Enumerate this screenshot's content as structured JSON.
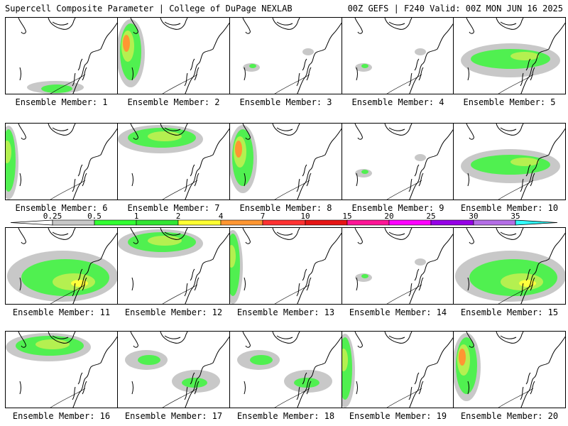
{
  "header": {
    "left": "Supercell Composite Parameter | College of DuPage NEXLAB",
    "right": "00Z GEFS | F240 Valid: 00Z MON JUN 16 2025"
  },
  "panels": [
    {
      "label": "Ensemble Member: 1",
      "pattern": "sparse-south"
    },
    {
      "label": "Ensemble Member: 2",
      "pattern": "west-strong"
    },
    {
      "label": "Ensemble Member: 3",
      "pattern": "sparse"
    },
    {
      "label": "Ensemble Member: 4",
      "pattern": "sparse"
    },
    {
      "label": "Ensemble Member: 5",
      "pattern": "band"
    },
    {
      "label": "Ensemble Member: 6",
      "pattern": "west-edge"
    },
    {
      "label": "Ensemble Member: 7",
      "pattern": "north"
    },
    {
      "label": "Ensemble Member: 8",
      "pattern": "west-strong"
    },
    {
      "label": "Ensemble Member: 9",
      "pattern": "sparse"
    },
    {
      "label": "Ensemble Member: 10",
      "pattern": "band"
    },
    {
      "label": "Ensemble Member: 11",
      "pattern": "south-broad"
    },
    {
      "label": "Ensemble Member: 12",
      "pattern": "north"
    },
    {
      "label": "Ensemble Member: 13",
      "pattern": "west-edge"
    },
    {
      "label": "Ensemble Member: 14",
      "pattern": "sparse"
    },
    {
      "label": "Ensemble Member: 15",
      "pattern": "south-broad"
    },
    {
      "label": "Ensemble Member: 16",
      "pattern": "north"
    },
    {
      "label": "Ensemble Member: 17",
      "pattern": "scattered"
    },
    {
      "label": "Ensemble Member: 18",
      "pattern": "scattered"
    },
    {
      "label": "Ensemble Member: 19",
      "pattern": "west-edge"
    },
    {
      "label": "Ensemble Member: 20",
      "pattern": "west-strong"
    }
  ],
  "colorbar": {
    "ticks": [
      "0.25",
      "0.5",
      "1",
      "2",
      "4",
      "7",
      "10",
      "15",
      "20",
      "25",
      "30",
      "35"
    ],
    "colors": [
      "#c8c8c8",
      "#32ff32",
      "#32e632",
      "#ffff32",
      "#ff9632",
      "#ff3232",
      "#e61414",
      "#ff1496",
      "#ff00ff",
      "#9600e6",
      "#b46ee6",
      "#32ffff"
    ]
  },
  "fill_colors": {
    "light": "#c8c8c8",
    "low": "#50f050",
    "mid": "#b4f050",
    "high": "#ffff3c",
    "vhigh": "#ff9632",
    "extreme": "#ff2020"
  }
}
